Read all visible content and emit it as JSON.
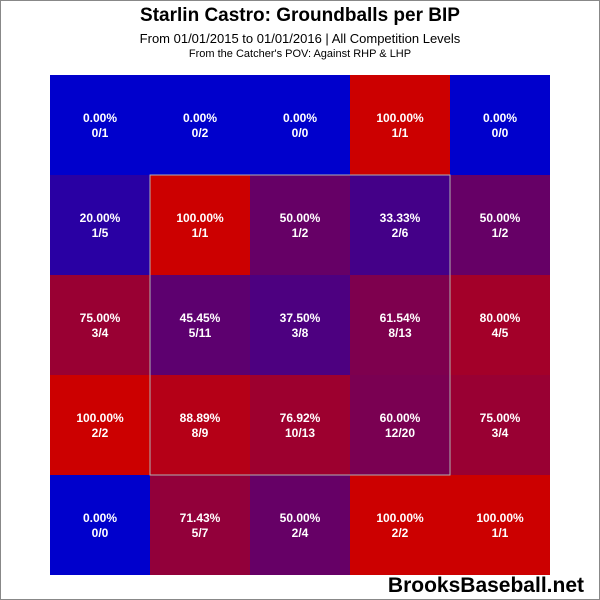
{
  "chart_data": {
    "type": "heatmap",
    "title": "Starlin Castro: Groundballs per BIP",
    "subtitle": "From 01/01/2015 to 01/01/2016 | All Competition Levels",
    "subtitle2": "From the Catcher's POV:  Against RHP & LHP",
    "rows": 5,
    "cols": 5,
    "cells": [
      [
        {
          "pct": "0.00%",
          "frac": "0/1",
          "value": 0.0
        },
        {
          "pct": "0.00%",
          "frac": "0/2",
          "value": 0.0
        },
        {
          "pct": "0.00%",
          "frac": "0/0",
          "value": 0.0
        },
        {
          "pct": "100.00%",
          "frac": "1/1",
          "value": 1.0
        },
        {
          "pct": "0.00%",
          "frac": "0/0",
          "value": 0.0
        }
      ],
      [
        {
          "pct": "20.00%",
          "frac": "1/5",
          "value": 0.2
        },
        {
          "pct": "100.00%",
          "frac": "1/1",
          "value": 1.0
        },
        {
          "pct": "50.00%",
          "frac": "1/2",
          "value": 0.5
        },
        {
          "pct": "33.33%",
          "frac": "2/6",
          "value": 0.3333
        },
        {
          "pct": "50.00%",
          "frac": "1/2",
          "value": 0.5
        }
      ],
      [
        {
          "pct": "75.00%",
          "frac": "3/4",
          "value": 0.75
        },
        {
          "pct": "45.45%",
          "frac": "5/11",
          "value": 0.4545
        },
        {
          "pct": "37.50%",
          "frac": "3/8",
          "value": 0.375
        },
        {
          "pct": "61.54%",
          "frac": "8/13",
          "value": 0.6154
        },
        {
          "pct": "80.00%",
          "frac": "4/5",
          "value": 0.8
        }
      ],
      [
        {
          "pct": "100.00%",
          "frac": "2/2",
          "value": 1.0
        },
        {
          "pct": "88.89%",
          "frac": "8/9",
          "value": 0.8889
        },
        {
          "pct": "76.92%",
          "frac": "10/13",
          "value": 0.7692
        },
        {
          "pct": "60.00%",
          "frac": "12/20",
          "value": 0.6
        },
        {
          "pct": "75.00%",
          "frac": "3/4",
          "value": 0.75
        }
      ],
      [
        {
          "pct": "0.00%",
          "frac": "0/0",
          "value": 0.0
        },
        {
          "pct": "71.43%",
          "frac": "5/7",
          "value": 0.7143
        },
        {
          "pct": "50.00%",
          "frac": "2/4",
          "value": 0.5
        },
        {
          "pct": "100.00%",
          "frac": "2/2",
          "value": 1.0
        },
        {
          "pct": "100.00%",
          "frac": "1/1",
          "value": 1.0
        }
      ]
    ],
    "strike_zone": {
      "rows": [
        1,
        3
      ],
      "cols": [
        1,
        3
      ]
    },
    "colors": {
      "low": "#0000cc",
      "high": "#cc0000",
      "text": "#ffffff",
      "zone_border": "#b0b0b0"
    }
  },
  "brand": "BrooksBaseball.net"
}
